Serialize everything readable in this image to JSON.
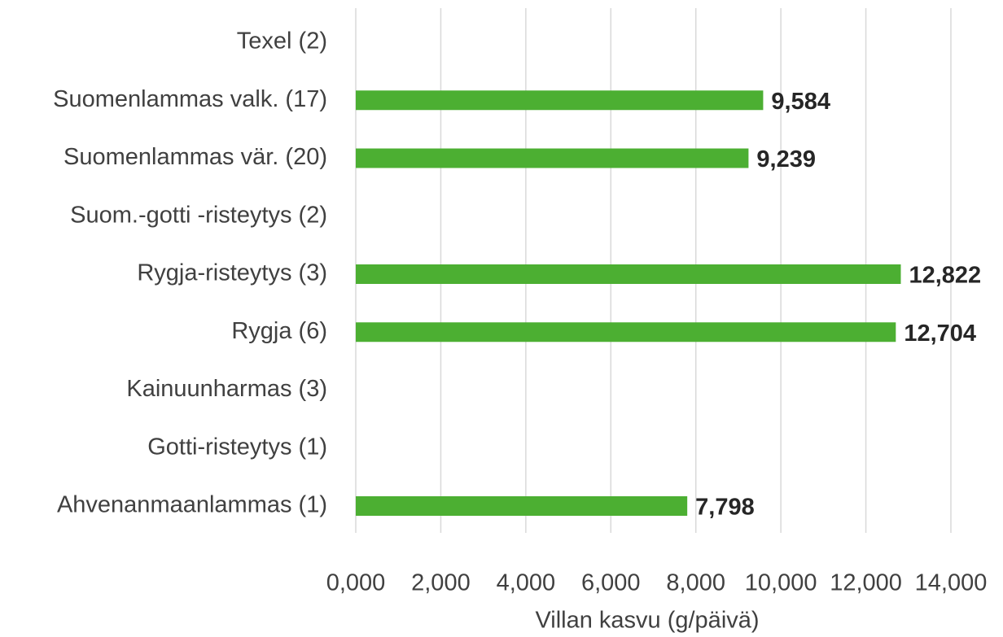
{
  "chart_data": {
    "type": "bar",
    "orientation": "horizontal",
    "categories": [
      "Texel (2)",
      "Suomenlammas valk. (17)",
      "Suomenlammas vär. (20)",
      "Suom.-gotti -risteytys (2)",
      "Rygja-risteytys (3)",
      "Rygja (6)",
      "Kainuunharmas (3)",
      "Gotti-risteytys (1)",
      "Ahvenanmaanlammas (1)"
    ],
    "values": [
      null,
      9.584,
      9.239,
      null,
      12.822,
      12.704,
      null,
      null,
      7.798
    ],
    "value_labels": [
      null,
      "9,584",
      "9,239",
      null,
      "12,822",
      "12,704",
      null,
      null,
      "7,798"
    ],
    "color": "#4caf32",
    "xlabel": "Villan kasvu (g/päivä)",
    "xlim": [
      0,
      14
    ],
    "xticks": [
      {
        "value": 0,
        "label": "0,000"
      },
      {
        "value": 2,
        "label": "2,000"
      },
      {
        "value": 4,
        "label": "4,000"
      },
      {
        "value": 6,
        "label": "6,000"
      },
      {
        "value": 8,
        "label": "8,000"
      },
      {
        "value": 10,
        "label": "10,000"
      },
      {
        "value": 12,
        "label": "12,000"
      },
      {
        "value": 14,
        "label": "14,000"
      }
    ],
    "grid": true
  }
}
